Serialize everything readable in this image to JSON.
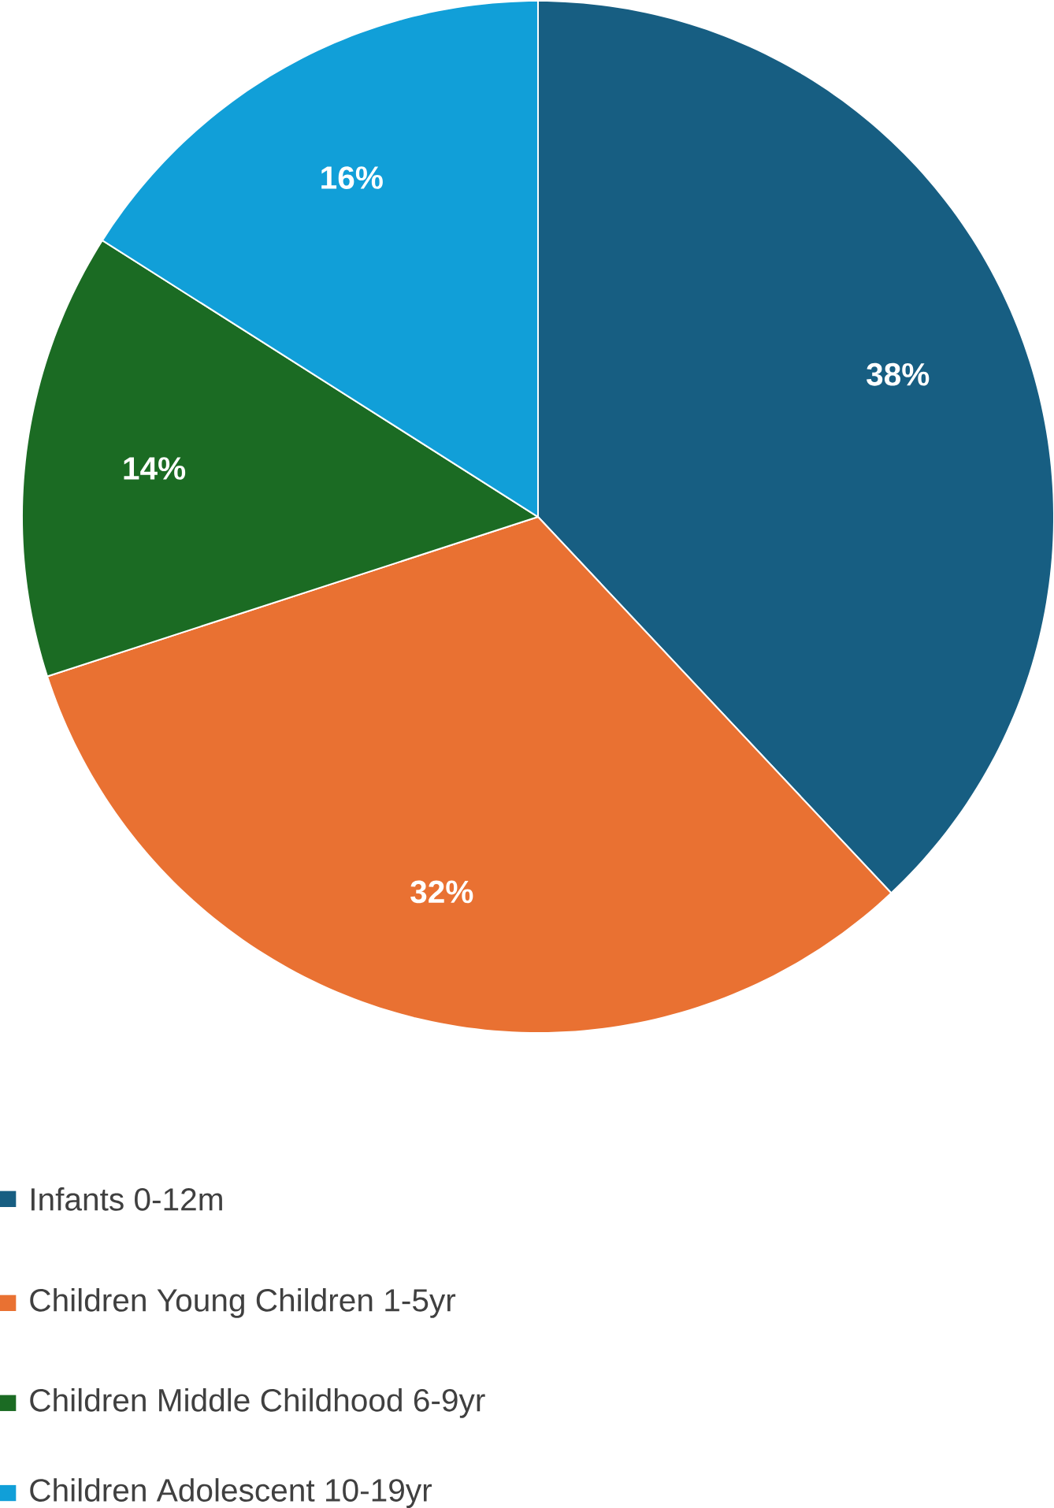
{
  "chart_data": {
    "type": "pie",
    "categories": [
      "Infants 0-12m",
      "Children Young Children 1-5yr",
      "Children Middle Childhood 6-9yr",
      "Children Adolescent 10-19yr"
    ],
    "values": [
      38,
      32,
      14,
      16
    ],
    "value_labels": [
      "38%",
      "32%",
      "14%",
      "16%"
    ],
    "colors": [
      "#175e82",
      "#e97132",
      "#1b6b23",
      "#119fd8"
    ],
    "legend": "bottom"
  }
}
